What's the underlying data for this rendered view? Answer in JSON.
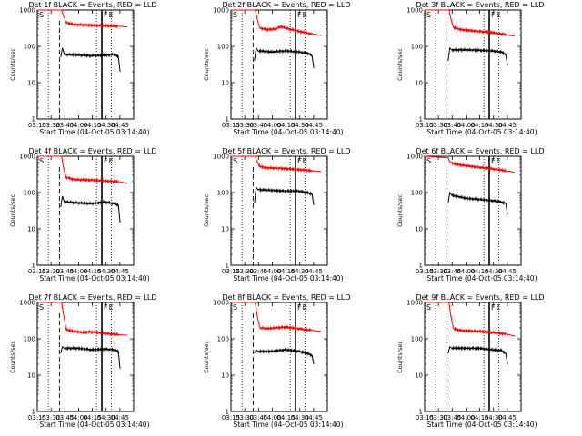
{
  "chart_data": [
    {
      "type": "line",
      "title": "Det 1f BLACK = Events, RED = LLD",
      "xlabel": "Start Time (04-Oct-05 03:14:40)",
      "ylabel": "Counts/sec",
      "xticks": [
        "03:15",
        "03:30",
        "03:45",
        "04:00",
        "04:15",
        "04:30",
        "04:45"
      ],
      "yticks": [
        "1",
        "10",
        "100",
        "1000"
      ],
      "ylim": [
        1,
        1000
      ],
      "markers": [
        "S",
        "F",
        "E"
      ],
      "series": [
        {
          "color": "#ff0000",
          "points": [
            [
              0,
              1000
            ],
            [
              27,
              1000
            ],
            [
              29,
              700
            ],
            [
              32,
              450
            ],
            [
              40,
              400
            ],
            [
              60,
              380
            ],
            [
              75,
              370
            ],
            [
              90,
              360
            ],
            [
              100,
              340
            ]
          ]
        },
        {
          "color": "#000000",
          "points": [
            [
              26,
              50
            ],
            [
              28,
              90
            ],
            [
              30,
              60
            ],
            [
              45,
              58
            ],
            [
              60,
              55
            ],
            [
              75,
              57
            ],
            [
              85,
              60
            ],
            [
              90,
              52
            ],
            [
              92,
              20
            ]
          ]
        }
      ]
    },
    {
      "type": "line",
      "title": "Det 2f BLACK = Events, RED = LLD",
      "xlabel": "Start Time (04-Oct-05 03:14:40)",
      "ylabel": "Counts/sec",
      "xticks": [
        "03:15",
        "03:30",
        "03:45",
        "04:00",
        "04:15",
        "04:30",
        "04:45"
      ],
      "yticks": [
        "1",
        "10",
        "100",
        "1000"
      ],
      "ylim": [
        1,
        1000
      ],
      "markers": [
        "S",
        "F",
        "E"
      ],
      "series": [
        {
          "color": "#ff0000",
          "points": [
            [
              0,
              1000
            ],
            [
              27,
              1000
            ],
            [
              29,
              600
            ],
            [
              32,
              320
            ],
            [
              40,
              290
            ],
            [
              50,
              300
            ],
            [
              55,
              350
            ],
            [
              60,
              320
            ],
            [
              75,
              260
            ],
            [
              90,
              220
            ],
            [
              100,
              200
            ]
          ]
        },
        {
          "color": "#000000",
          "points": [
            [
              26,
              40
            ],
            [
              28,
              90
            ],
            [
              30,
              75
            ],
            [
              45,
              70
            ],
            [
              60,
              75
            ],
            [
              75,
              70
            ],
            [
              85,
              65
            ],
            [
              90,
              55
            ],
            [
              92,
              25
            ]
          ]
        }
      ]
    },
    {
      "type": "line",
      "title": "Det 3f BLACK = Events, RED = LLD",
      "xlabel": "Start Time (04-Oct-05 03:14:40)",
      "ylabel": "Counts/sec",
      "xticks": [
        "03:15",
        "03:30",
        "03:45",
        "04:00",
        "04:15",
        "04:30",
        "04:45"
      ],
      "yticks": [
        "1",
        "10",
        "100",
        "1000"
      ],
      "ylim": [
        1,
        1000
      ],
      "markers": [
        "S",
        "F",
        "E"
      ],
      "series": [
        {
          "color": "#ff0000",
          "points": [
            [
              0,
              1000
            ],
            [
              27,
              1000
            ],
            [
              29,
              600
            ],
            [
              32,
              330
            ],
            [
              40,
              290
            ],
            [
              60,
              260
            ],
            [
              75,
              240
            ],
            [
              90,
              210
            ],
            [
              100,
              190
            ]
          ]
        },
        {
          "color": "#000000",
          "points": [
            [
              26,
              40
            ],
            [
              28,
              90
            ],
            [
              30,
              80
            ],
            [
              45,
              80
            ],
            [
              60,
              78
            ],
            [
              75,
              75
            ],
            [
              85,
              70
            ],
            [
              90,
              60
            ],
            [
              92,
              30
            ]
          ]
        }
      ]
    },
    {
      "type": "line",
      "title": "Det 4f BLACK = Events, RED = LLD",
      "xlabel": "Start Time (04-Oct-05 03:14:40)",
      "ylabel": "Counts/sec",
      "xticks": [
        "03:15",
        "03:30",
        "03:45",
        "04:00",
        "04:15",
        "04:30",
        "04:45"
      ],
      "yticks": [
        "1",
        "10",
        "100",
        "1000"
      ],
      "ylim": [
        1,
        1000
      ],
      "markers": [
        "S",
        "F",
        "E"
      ],
      "series": [
        {
          "color": "#ff0000",
          "points": [
            [
              0,
              1000
            ],
            [
              27,
              1000
            ],
            [
              29,
              500
            ],
            [
              32,
              260
            ],
            [
              40,
              230
            ],
            [
              60,
              220
            ],
            [
              75,
              210
            ],
            [
              90,
              200
            ],
            [
              100,
              180
            ]
          ]
        },
        {
          "color": "#000000",
          "points": [
            [
              26,
              40
            ],
            [
              28,
              80
            ],
            [
              30,
              55
            ],
            [
              45,
              52
            ],
            [
              60,
              50
            ],
            [
              75,
              55
            ],
            [
              85,
              50
            ],
            [
              90,
              45
            ],
            [
              92,
              15
            ]
          ]
        }
      ]
    },
    {
      "type": "line",
      "title": "Det 5f BLACK = Events, RED = LLD",
      "xlabel": "Start Time (04-Oct-05 03:14:40)",
      "ylabel": "Counts/sec",
      "xticks": [
        "03:15",
        "03:30",
        "03:45",
        "04:00",
        "04:15",
        "04:30",
        "04:45"
      ],
      "yticks": [
        "1",
        "10",
        "100",
        "1000"
      ],
      "ylim": [
        1,
        1000
      ],
      "markers": [
        "S",
        "F",
        "E"
      ],
      "series": [
        {
          "color": "#ff0000",
          "points": [
            [
              0,
              1000
            ],
            [
              27,
              1000
            ],
            [
              29,
              700
            ],
            [
              32,
              520
            ],
            [
              40,
              480
            ],
            [
              60,
              460
            ],
            [
              75,
              430
            ],
            [
              90,
              400
            ],
            [
              100,
              380
            ]
          ]
        },
        {
          "color": "#000000",
          "points": [
            [
              26,
              50
            ],
            [
              28,
              140
            ],
            [
              30,
              120
            ],
            [
              45,
              115
            ],
            [
              60,
              110
            ],
            [
              75,
              110
            ],
            [
              85,
              100
            ],
            [
              90,
              90
            ],
            [
              92,
              45
            ]
          ]
        }
      ]
    },
    {
      "type": "line",
      "title": "Det 6f BLACK = Events, RED = LLD",
      "xlabel": "Start Time (04-Oct-05 03:14:40)",
      "ylabel": "Counts/sec",
      "xticks": [
        "03:15",
        "03:30",
        "03:45",
        "04:00",
        "04:15",
        "04:30",
        "04:45"
      ],
      "yticks": [
        "1",
        "10",
        "100",
        "1000"
      ],
      "ylim": [
        1,
        1000
      ],
      "markers": [
        "S",
        "F",
        "E"
      ],
      "series": [
        {
          "color": "#ff0000",
          "points": [
            [
              0,
              1000
            ],
            [
              26,
              900
            ],
            [
              28,
              700
            ],
            [
              32,
              620
            ],
            [
              40,
              570
            ],
            [
              60,
              500
            ],
            [
              75,
              450
            ],
            [
              90,
              400
            ],
            [
              100,
              360
            ]
          ]
        },
        {
          "color": "#000000",
          "points": [
            [
              26,
              50
            ],
            [
              28,
              100
            ],
            [
              30,
              85
            ],
            [
              45,
              70
            ],
            [
              60,
              65
            ],
            [
              75,
              60
            ],
            [
              85,
              55
            ],
            [
              90,
              50
            ],
            [
              92,
              25
            ]
          ]
        }
      ]
    },
    {
      "type": "line",
      "title": "Det 7f BLACK = Events, RED = LLD",
      "xlabel": "Start Time (04-Oct-05 03:14:40)",
      "ylabel": "Counts/sec",
      "xticks": [
        "03:15",
        "03:30",
        "03:45",
        "04:00",
        "04:15",
        "04:30",
        "04:45"
      ],
      "yticks": [
        "1",
        "10",
        "100",
        "1000"
      ],
      "ylim": [
        1,
        1000
      ],
      "markers": [
        "S",
        "F",
        "E"
      ],
      "series": [
        {
          "color": "#ff0000",
          "points": [
            [
              0,
              1000
            ],
            [
              27,
              1000
            ],
            [
              29,
              500
            ],
            [
              32,
              180
            ],
            [
              40,
              160
            ],
            [
              50,
              150
            ],
            [
              60,
              155
            ],
            [
              75,
              140
            ],
            [
              90,
              130
            ],
            [
              100,
              125
            ]
          ]
        },
        {
          "color": "#000000",
          "points": [
            [
              26,
              40
            ],
            [
              28,
              60
            ],
            [
              30,
              55
            ],
            [
              45,
              55
            ],
            [
              60,
              50
            ],
            [
              75,
              52
            ],
            [
              85,
              50
            ],
            [
              90,
              45
            ],
            [
              92,
              15
            ]
          ]
        }
      ]
    },
    {
      "type": "line",
      "title": "Det 8f BLACK = Events, RED = LLD",
      "xlabel": "Start Time (04-Oct-05 03:14:40)",
      "ylabel": "Counts/sec",
      "xticks": [
        "03:15",
        "03:30",
        "03:45",
        "04:00",
        "04:15",
        "04:30",
        "04:45"
      ],
      "yticks": [
        "1",
        "10",
        "100",
        "1000"
      ],
      "ylim": [
        1,
        1000
      ],
      "markers": [
        "S",
        "F",
        "E"
      ],
      "series": [
        {
          "color": "#ff0000",
          "points": [
            [
              0,
              1000
            ],
            [
              27,
              1000
            ],
            [
              29,
              450
            ],
            [
              32,
              200
            ],
            [
              40,
              190
            ],
            [
              60,
              210
            ],
            [
              75,
              190
            ],
            [
              90,
              170
            ],
            [
              100,
              160
            ]
          ]
        },
        {
          "color": "#000000",
          "points": [
            [
              26,
              40
            ],
            [
              28,
              50
            ],
            [
              30,
              45
            ],
            [
              45,
              45
            ],
            [
              60,
              50
            ],
            [
              75,
              45
            ],
            [
              85,
              40
            ],
            [
              90,
              35
            ],
            [
              92,
              20
            ]
          ]
        }
      ]
    },
    {
      "type": "line",
      "title": "Det 9f BLACK = Events, RED = LLD",
      "xlabel": "Start Time (04-Oct-05 03:14:40)",
      "ylabel": "Counts/sec",
      "xticks": [
        "03:15",
        "03:30",
        "03:45",
        "04:00",
        "04:15",
        "04:30",
        "04:45"
      ],
      "yticks": [
        "1",
        "10",
        "100",
        "1000"
      ],
      "ylim": [
        1,
        1000
      ],
      "markers": [
        "S",
        "F",
        "E"
      ],
      "series": [
        {
          "color": "#ff0000",
          "points": [
            [
              0,
              1000
            ],
            [
              27,
              1000
            ],
            [
              29,
              450
            ],
            [
              32,
              190
            ],
            [
              40,
              170
            ],
            [
              60,
              160
            ],
            [
              75,
              150
            ],
            [
              90,
              135
            ],
            [
              100,
              120
            ]
          ]
        },
        {
          "color": "#000000",
          "points": [
            [
              26,
              40
            ],
            [
              28,
              60
            ],
            [
              30,
              55
            ],
            [
              45,
              55
            ],
            [
              60,
              55
            ],
            [
              75,
              50
            ],
            [
              85,
              48
            ],
            [
              90,
              40
            ],
            [
              92,
              20
            ]
          ]
        }
      ]
    }
  ]
}
